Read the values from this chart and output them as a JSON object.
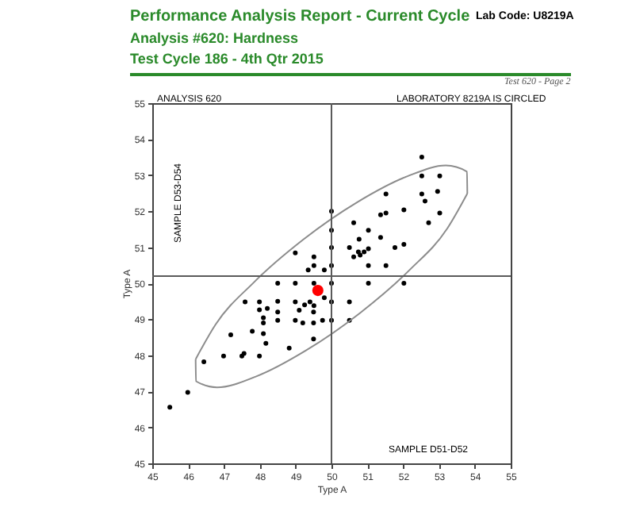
{
  "chart_data": {
    "type": "scatter",
    "title": "Performance Analysis Report - Current Cycle",
    "subtitle": "Analysis #620: Hardness\nTest Cycle 186 - 4th Qtr 2015",
    "xlabel": "Type A",
    "ylabel": "Type A",
    "annotations": [
      "Lab Code: U8219A",
      "Test 620 - Page 2",
      "ANALYSIS 620",
      "LABORATORY 8219A IS CIRCLED",
      "SAMPLE D53-D54",
      "SAMPLE D51-D52"
    ],
    "xlim": [
      45,
      55
    ],
    "ylim": [
      45,
      55
    ],
    "xticks": [
      45,
      46,
      47,
      48,
      49,
      50,
      51,
      52,
      53,
      54,
      55
    ],
    "yticks": [
      45,
      46,
      47,
      48,
      49,
      50,
      51,
      52,
      53,
      54,
      55
    ],
    "grid": false,
    "marker": "circle",
    "ref_lines": [
      {
        "axis": "x",
        "value": 50,
        "label": null,
        "color": "#5a5a5a"
      },
      {
        "axis": "y",
        "value": 50.2,
        "label": null,
        "color": "#5a5a5a"
      }
    ],
    "series": [
      {
        "type": "scatter",
        "color": "#000000",
        "x": [
          50.0,
          50.62,
          50.0,
          50.77,
          50.0,
          50.5,
          48.99,
          49.51,
          50.75,
          50.91,
          50.62,
          49.51,
          50.0,
          49.35,
          49.8,
          48.5,
          48.99,
          49.51,
          50.0,
          47.59,
          47.99,
          48.5,
          48.99,
          49.25,
          49.4,
          49.51,
          50.0,
          48.21,
          48.5,
          49.1,
          49.5,
          49.8,
          47.99,
          48.1,
          48.1,
          48.5,
          48.99,
          49.2,
          49.5,
          49.75,
          50.0,
          50.5,
          47.19,
          47.79,
          48.1,
          48.17,
          49.5,
          48.82,
          46.99,
          47.5,
          47.56,
          47.99,
          46.44,
          45.99,
          45.49,
          52.52,
          52.52,
          53.02,
          51.52,
          52.52,
          52.96,
          52.61,
          52.02,
          51.52,
          51.37,
          53.02,
          52.71,
          51.03,
          51.37,
          51.77,
          52.02,
          51.03,
          50.8,
          51.03,
          51.52,
          52.02,
          51.03,
          50.5
        ],
        "values": [
          52.0,
          51.68,
          51.47,
          51.22,
          50.99,
          50.99,
          50.84,
          50.73,
          50.87,
          50.87,
          50.73,
          50.49,
          50.49,
          50.37,
          50.37,
          50.0,
          50.0,
          50.0,
          50.0,
          49.48,
          49.48,
          49.5,
          49.48,
          49.4,
          49.48,
          49.38,
          49.48,
          49.3,
          49.2,
          49.25,
          49.2,
          49.6,
          49.26,
          49.04,
          48.9,
          48.97,
          48.97,
          48.9,
          48.9,
          48.97,
          48.97,
          48.97,
          48.57,
          48.67,
          48.6,
          48.33,
          48.45,
          48.2,
          47.98,
          47.98,
          48.05,
          47.98,
          47.82,
          46.97,
          46.56,
          53.5,
          52.98,
          52.98,
          52.48,
          52.48,
          52.55,
          52.28,
          52.04,
          51.95,
          51.9,
          51.95,
          51.68,
          51.47,
          51.27,
          50.99,
          51.08,
          50.96,
          50.78,
          50.49,
          50.49,
          50.0,
          50.0,
          49.48
        ]
      },
      {
        "type": "scatter",
        "color": "#ff0000",
        "x": [
          49.62
        ],
        "values": [
          49.8
        ]
      },
      {
        "type": "line",
        "marker": "none",
        "color": "#8c8c8c",
        "x": [
          46.21,
          46.77,
          47.83,
          49.21,
          50.72,
          52.12,
          53.19,
          53.78,
          53.79
        ],
        "values": [
          47.89,
          48.86,
          50.02,
          51.21,
          52.25,
          52.97,
          53.27,
          53.1,
          52.49
        ]
      },
      {
        "type": "line",
        "marker": "none",
        "color": "#8c8c8c",
        "x": [
          46.21,
          46.22,
          46.81,
          47.89,
          49.28,
          50.79,
          52.17,
          53.23,
          53.79
        ],
        "values": [
          47.89,
          47.28,
          47.11,
          47.41,
          48.13,
          49.17,
          50.36,
          51.52,
          52.49
        ]
      }
    ]
  }
}
